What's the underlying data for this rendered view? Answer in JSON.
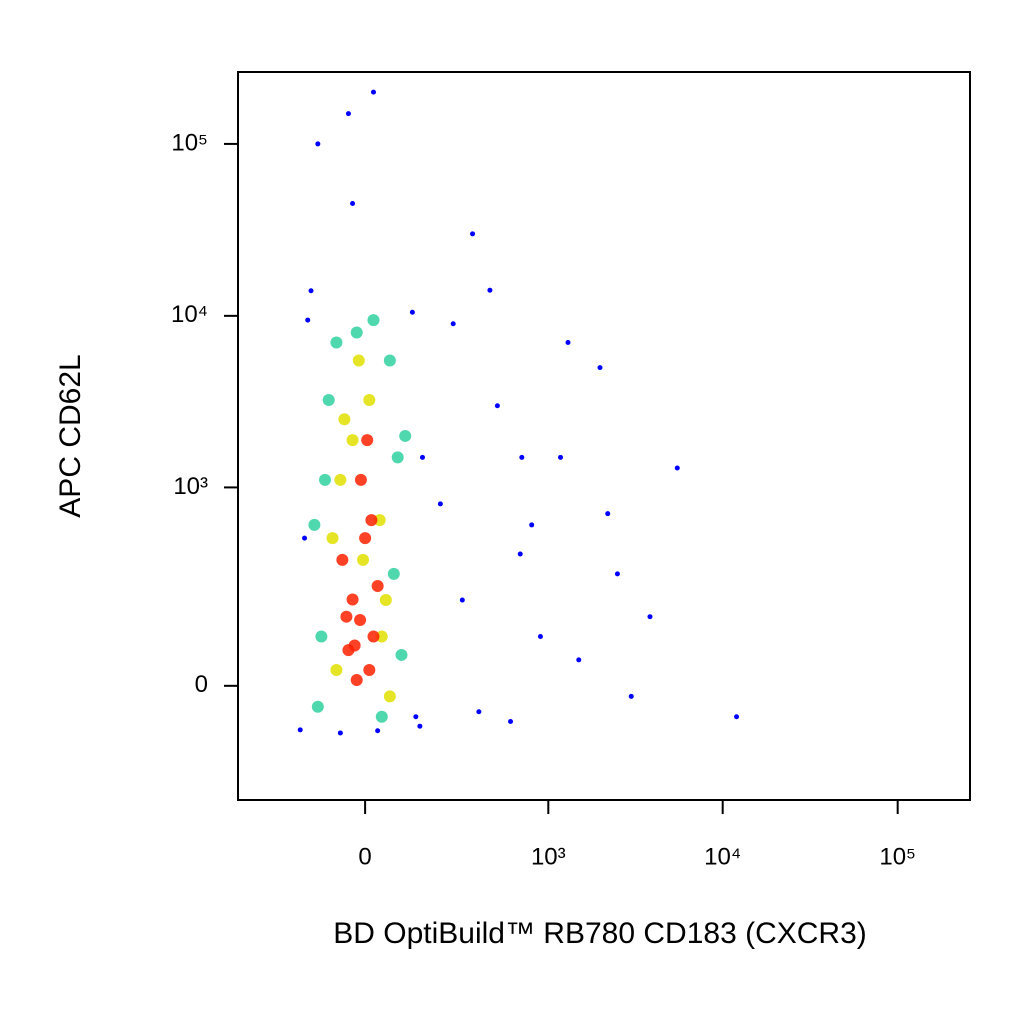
{
  "chart_data": {
    "type": "scatter",
    "xlabel": "BD OptiBuild™ RB780 CD183 (CXCR3)",
    "ylabel": "APC CD62L",
    "xscale": {
      "type": "arcsinh",
      "cofactor": 181
    },
    "yscale": {
      "type": "arcsinh",
      "cofactor": 141
    },
    "xlim": [
      -465,
      259000
    ],
    "ylim": [
      -310,
      262000
    ],
    "xticks": [
      0,
      {
        "value": 1000,
        "label": "10³"
      },
      {
        "value": 10000,
        "label": "10⁴"
      },
      {
        "value": 100000,
        "label": "10⁵"
      }
    ],
    "yticks": [
      0,
      {
        "value": 1000,
        "label": "10³"
      },
      {
        "value": 10000,
        "label": "10⁴"
      },
      {
        "value": 100000,
        "label": "10⁵"
      }
    ],
    "grid": false,
    "series": [
      {
        "color": "#0000ff",
        "x": [
          -174,
          -160,
          142,
          150,
          -150,
          120,
          -140,
          130,
          -60,
          30,
          210,
          300,
          384,
          500,
          685,
          900,
          1177,
          1500,
          1986,
          2500,
          3000,
          3840,
          260,
          450,
          800,
          1300,
          2200,
          600,
          350,
          700,
          5500,
          12000,
          -120,
          -40,
          20,
          -30
        ],
        "values": [
          -88,
          500,
          -80,
          1500,
          9450,
          10500,
          14000,
          -60,
          -95,
          -90,
          800,
          200,
          -50,
          3000,
          400,
          100,
          1500,
          50,
          5000,
          300,
          -20,
          150,
          9000,
          14100,
          600,
          7000,
          700,
          -70,
          30000,
          1500,
          1300,
          -60,
          100000,
          150000,
          200000,
          45000
        ]
      },
      {
        "color": "#30d0a0",
        "x": [
          -110,
          70,
          -100,
          80,
          -90,
          60,
          -120,
          90,
          -20,
          20,
          -70,
          40,
          -130,
          100
        ],
        "values": [
          100,
          300,
          1108,
          1500,
          3240,
          5500,
          -40,
          60,
          8000,
          9450,
          7000,
          -60,
          600,
          2000
        ]
      },
      {
        "color": "#e0e000",
        "x": [
          -70,
          -5,
          35,
          -60,
          50,
          -30,
          10,
          -80,
          60,
          -15,
          40,
          -50
        ],
        "values": [
          30,
          368,
          641,
          1108,
          200,
          1890,
          3240,
          500,
          -20,
          5500,
          100,
          2500
        ]
      },
      {
        "color": "#ff2000",
        "x": [
          -40,
          -12,
          10,
          -30,
          20,
          -55,
          0,
          -20,
          30,
          -10,
          15,
          -45,
          5,
          -25
        ],
        "values": [
          70,
          141,
          30,
          202,
          100,
          368,
          500,
          11,
          250,
          1108,
          641,
          150,
          1890,
          80
        ]
      }
    ]
  }
}
